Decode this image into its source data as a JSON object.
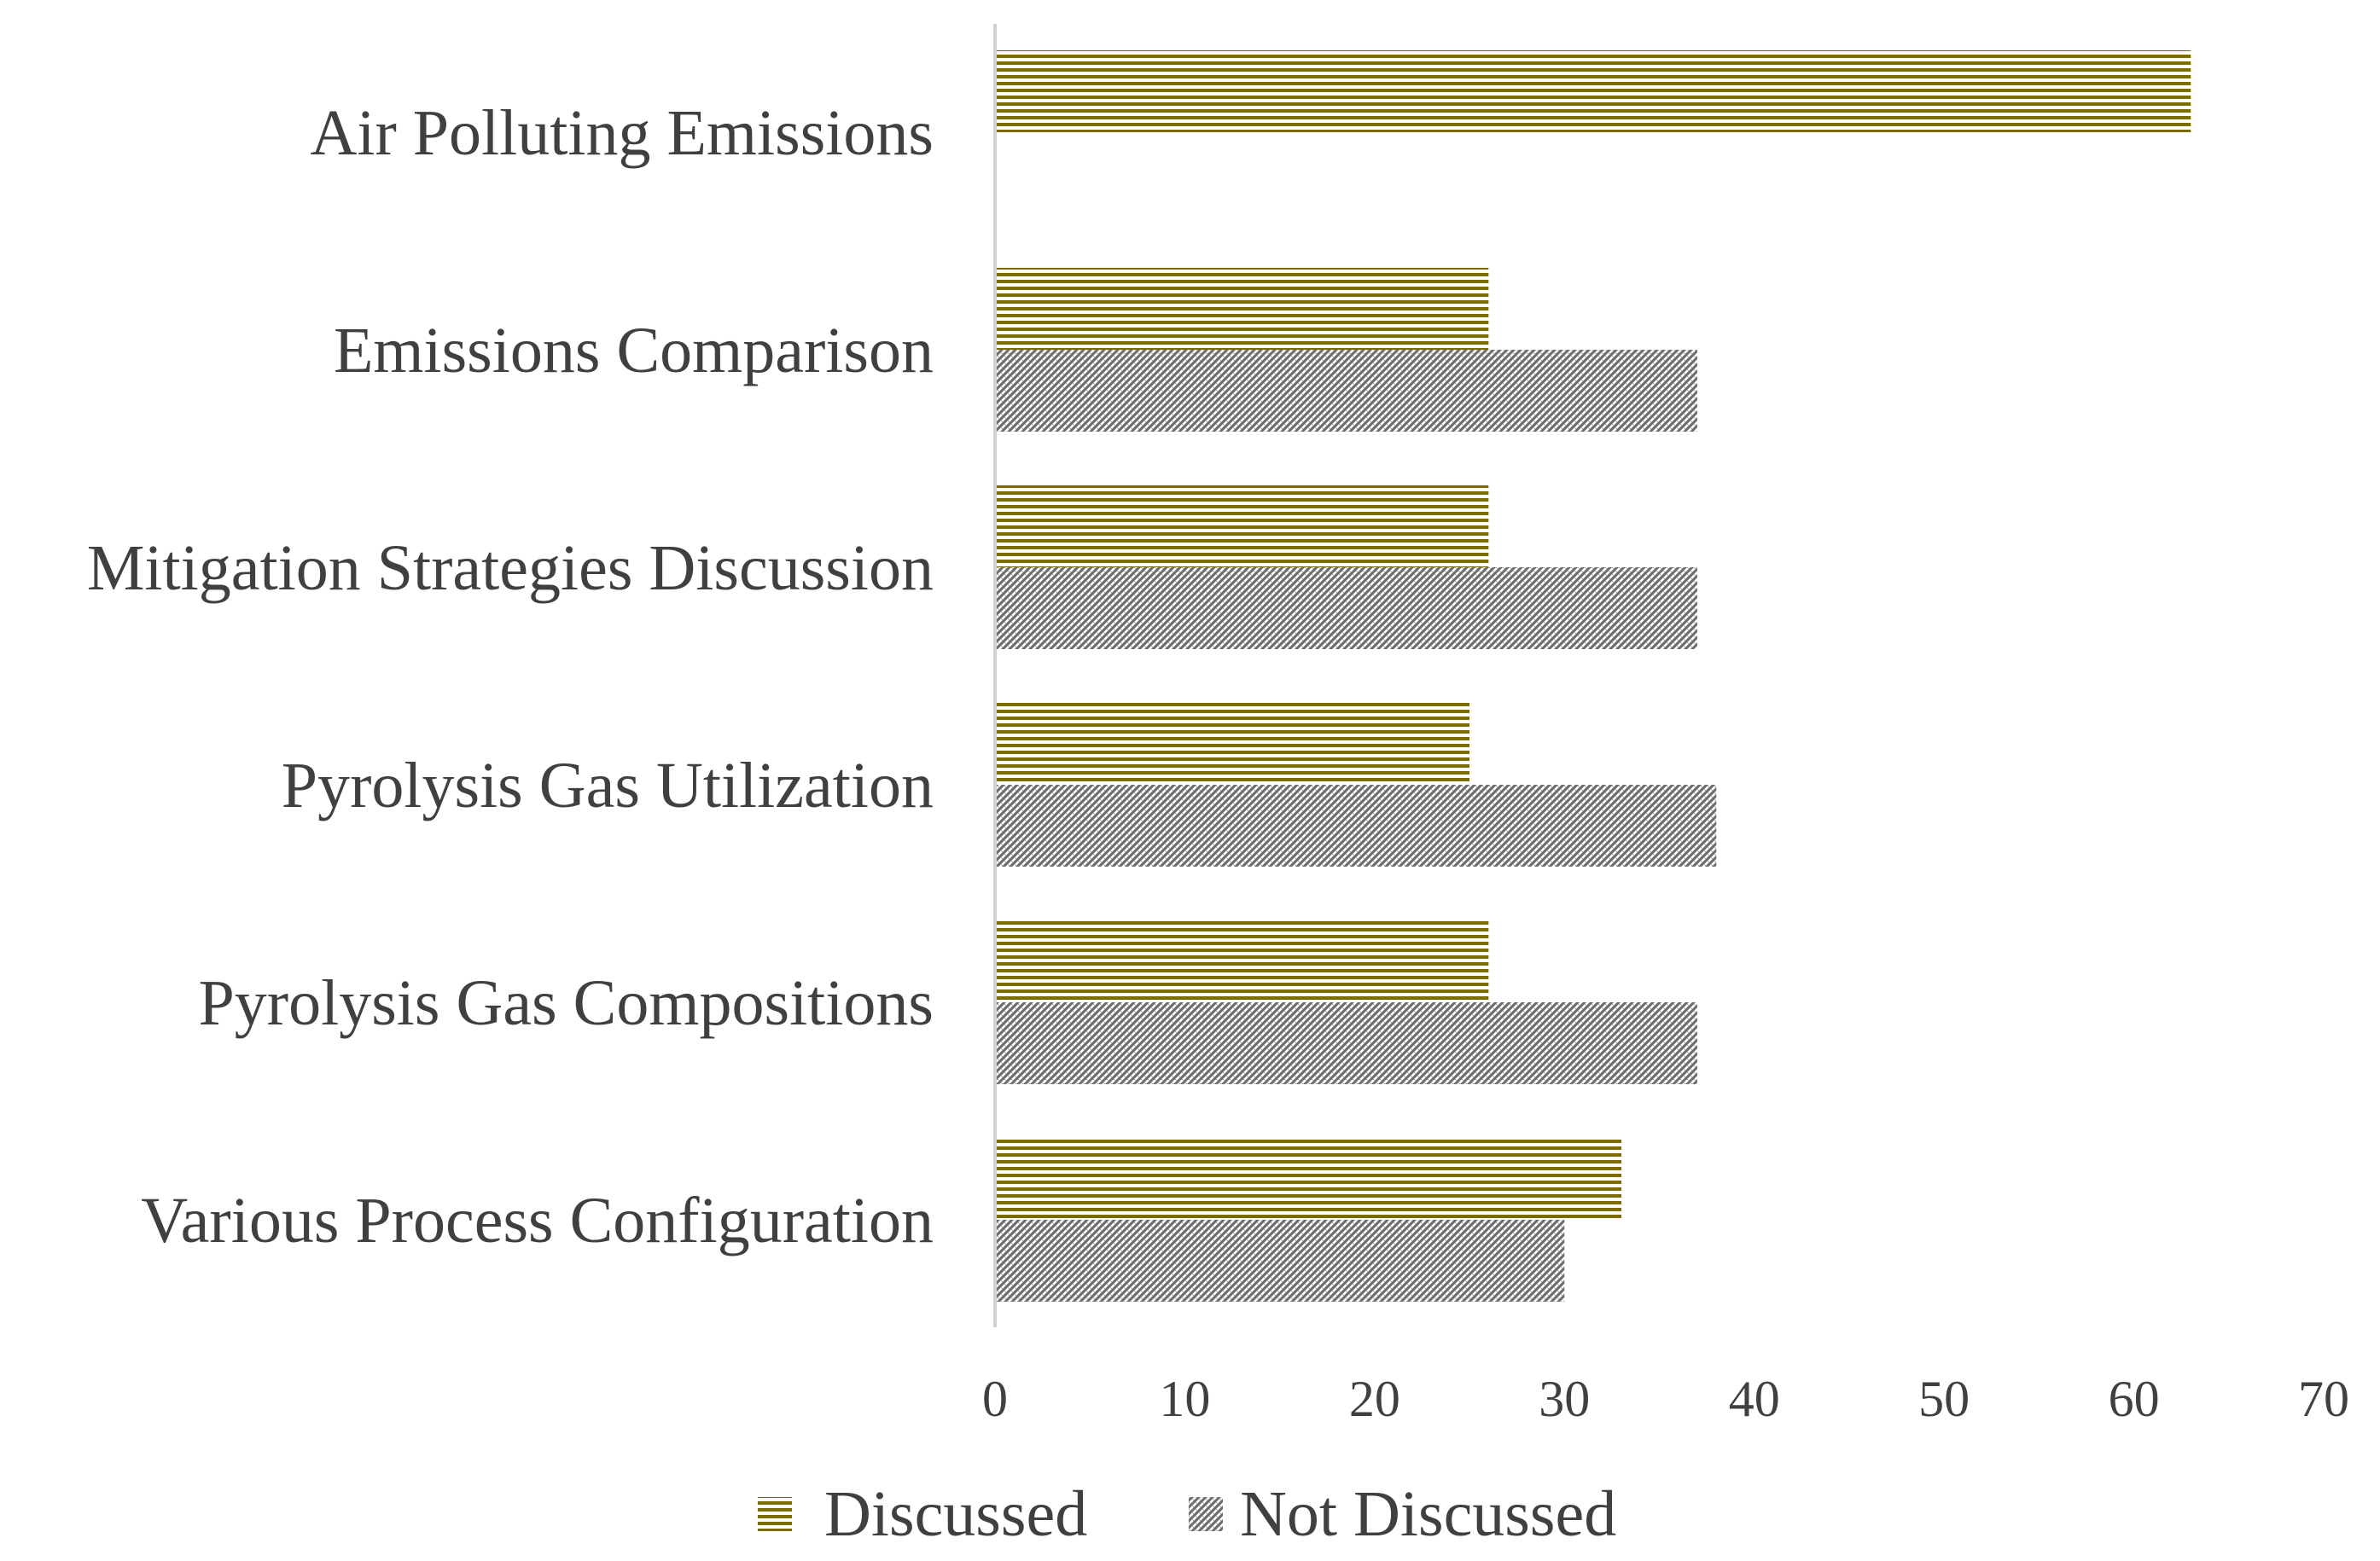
{
  "chart_data": {
    "type": "bar",
    "orientation": "horizontal",
    "title": "",
    "xlabel": "",
    "ylabel": "",
    "xlim": [
      0,
      70
    ],
    "x_ticks": [
      "0",
      "10",
      "20",
      "30",
      "40",
      "50",
      "60",
      "70"
    ],
    "grid": false,
    "legend_position": "bottom",
    "categories": [
      "Air Polluting Emissions",
      "Emissions Comparison",
      "Mitigation Strategies Discussion",
      "Pyrolysis Gas Utilization",
      "Pyrolysis Gas Compositions",
      "Various Process Configuration"
    ],
    "series": [
      {
        "name": "Discussed",
        "values": [
          63,
          26,
          26,
          25,
          26,
          33
        ],
        "color": "#7a6a00",
        "pattern": "horizontal-stripes"
      },
      {
        "name": "Not Discussed",
        "values": [
          0,
          37,
          37,
          38,
          37,
          30
        ],
        "color": "#6e6e6e",
        "pattern": "diagonal-hatch"
      }
    ]
  }
}
